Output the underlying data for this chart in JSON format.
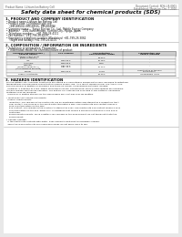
{
  "bg_color": "#ffffff",
  "page_bg": "#e8e8e8",
  "header_left": "Product Name: Lithium Ion Battery Cell",
  "header_right_line1": "Document Control: SDS-LIB-0001",
  "header_right_line2": "Established / Revision: Dec.7.2010",
  "title": "Safety data sheet for chemical products (SDS)",
  "section1_title": "1. PRODUCT AND COMPANY IDENTIFICATION",
  "section1_lines": [
    "• Product name: Lithium Ion Battery Cell",
    "• Product code: Cylindrical-type cell",
    "    (IHR18650U, IHR18650L, IHR18650A)",
    "• Company name:    Sanyo Electric Co., Ltd., Mobile Energy Company",
    "• Address:    2001 Kamishinden, Sumoto City, Hyogo, Japan",
    "• Telephone number:    +81-799-26-4111",
    "• Fax number:  +81-799-26-4129",
    "• Emergency telephone number (Weekdays) +81-799-26-3062",
    "    (Night and holiday) +81-799-26-4101"
  ],
  "section2_title": "2. COMPOSITION / INFORMATION ON INGREDIENTS",
  "section2_sub": "• Substance or preparation: Preparation",
  "section2_sub2": "  • Information about the chemical nature of product:",
  "table_headers": [
    "Common chemical name /\nSeveral names",
    "CAS number",
    "Concentration /\nConcentration range",
    "Classification and\nhazard labeling"
  ],
  "table_rows": [
    [
      "Lithium cobalt oxide\n(LiMnxCoxNiO2x)",
      "-",
      "30-60%",
      "-"
    ],
    [
      "Iron",
      "7439-89-6",
      "15-25%",
      "-"
    ],
    [
      "Aluminum",
      "7429-90-5",
      "2-8%",
      "-"
    ],
    [
      "Graphite\n(Mixed in graphite-1)\n(All Manganese graphite)",
      "7782-42-5\n7782-44-0",
      "10-20%",
      "-"
    ],
    [
      "Copper",
      "7440-50-8",
      "3-10%",
      "Sensitization of the skin\ngroup R42,2"
    ],
    [
      "Organic electrolyte",
      "-",
      "10-20%",
      "Inflammable liquid"
    ]
  ],
  "section3_title": "3. HAZARDS IDENTIFICATION",
  "section3_text": [
    "For the battery cell, chemical substances are stored in a hermetically sealed metal case, designed to withstand",
    "temperatures and pressures-concentrations during normal use. As a result, during normal use, there is no",
    "physical danger of ignition or explosion and there no danger of hazardous materials leakage.",
    "  However, if exposed to a fire, added mechanical shocks, decomposed, when electro without dry measure,",
    "the gas release vent can be operated. The battery cell case will be breached at fire patterns. hazardous",
    "materials may be released.",
    "  Moreover, if heated strongly by the surrounding fire, soot gas may be emitted.",
    "",
    "• Most important hazard and effects:",
    "  Human health effects:",
    "    Inhalation: The release of the electrolyte has an anesthesia action and stimulates a respiratory tract.",
    "    Skin contact: The release of the electrolyte stimulates a skin. The electrolyte skin contact causes a",
    "    sore and stimulation on the skin.",
    "    Eye contact: The release of the electrolyte stimulates eyes. The electrolyte eye contact causes a sore",
    "    and stimulation on the eye. Especially, a substance that causes a strong inflammation of the eye is",
    "    contained.",
    "    Environmental effects: Since a battery cell remains in the environment, do not throw out it into the",
    "    environment.",
    "",
    "• Specific hazards:",
    "  If the electrolyte contacts with water, it will generate detrimental hydrogen fluoride.",
    "  Since the lead electrolyte is inflammable liquid, do not bring close to fire."
  ]
}
